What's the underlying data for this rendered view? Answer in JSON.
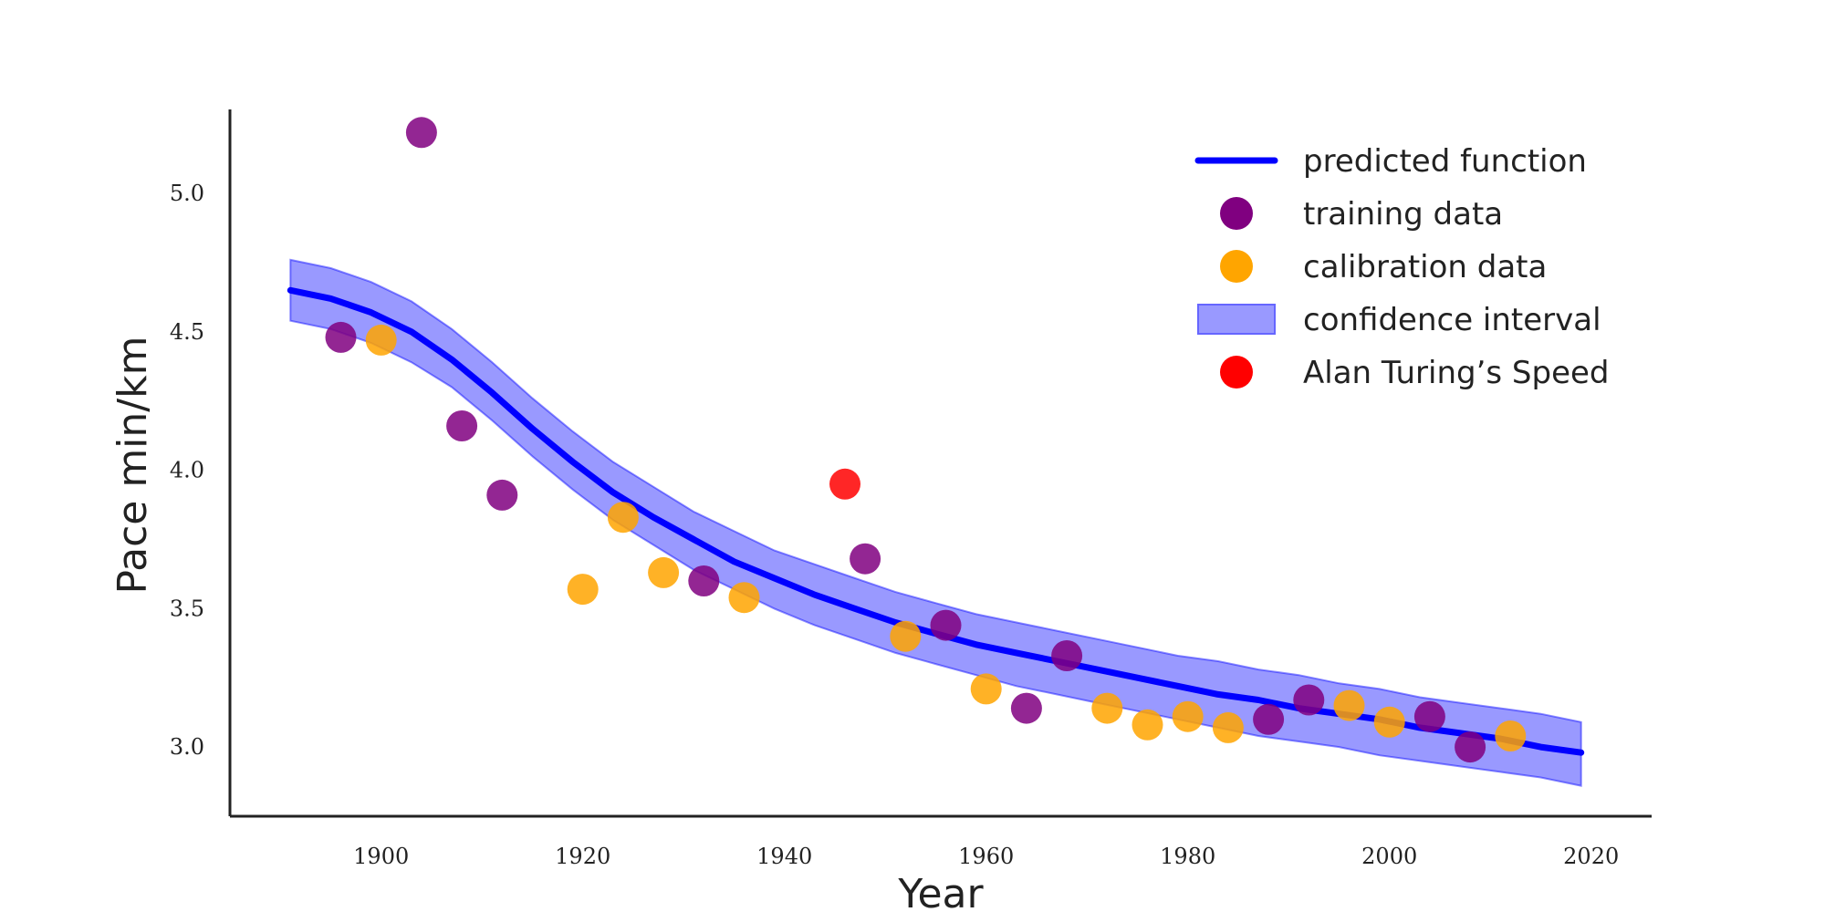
{
  "chart_data": {
    "type": "scatter",
    "xlabel": "Year",
    "ylabel": "Pace min/km",
    "xlim": [
      1885,
      2026
    ],
    "ylim": [
      2.75,
      5.3
    ],
    "xticks": [
      1900,
      1920,
      1940,
      1960,
      1980,
      2000,
      2020
    ],
    "yticks": [
      3.0,
      3.5,
      4.0,
      4.5,
      5.0
    ],
    "grid": false,
    "legend_position": "top-right",
    "legend": [
      {
        "label": "predicted function",
        "kind": "line",
        "color": "#0000ff"
      },
      {
        "label": "training data",
        "kind": "marker",
        "color": "#800080"
      },
      {
        "label": "calibration data",
        "kind": "marker",
        "color": "#ffa500"
      },
      {
        "label": "confidence interval",
        "kind": "patch",
        "color": "#9999ff"
      },
      {
        "label": "Alan Turing’s Speed",
        "kind": "marker",
        "color": "#ff0000"
      }
    ],
    "series": [
      {
        "name": "predicted function",
        "kind": "line",
        "color": "#0000ff",
        "x": [
          1891,
          1895,
          1899,
          1903,
          1907,
          1911,
          1915,
          1919,
          1923,
          1927,
          1931,
          1935,
          1939,
          1943,
          1947,
          1951,
          1955,
          1959,
          1963,
          1967,
          1971,
          1975,
          1979,
          1983,
          1987,
          1991,
          1995,
          1999,
          2003,
          2007,
          2011,
          2015,
          2019
        ],
        "y": [
          4.65,
          4.62,
          4.57,
          4.5,
          4.4,
          4.28,
          4.15,
          4.03,
          3.92,
          3.83,
          3.75,
          3.67,
          3.61,
          3.55,
          3.5,
          3.45,
          3.41,
          3.37,
          3.34,
          3.31,
          3.28,
          3.25,
          3.22,
          3.19,
          3.17,
          3.14,
          3.12,
          3.1,
          3.07,
          3.05,
          3.03,
          3.0,
          2.98
        ]
      },
      {
        "name": "confidence interval",
        "kind": "band",
        "color": "#0000ff",
        "x": [
          1891,
          1895,
          1899,
          1903,
          1907,
          1911,
          1915,
          1919,
          1923,
          1927,
          1931,
          1935,
          1939,
          1943,
          1947,
          1951,
          1955,
          1959,
          1963,
          1967,
          1971,
          1975,
          1979,
          1983,
          1987,
          1991,
          1995,
          1999,
          2003,
          2007,
          2011,
          2015,
          2019
        ],
        "lower": [
          4.54,
          4.51,
          4.46,
          4.39,
          4.3,
          4.18,
          4.05,
          3.93,
          3.82,
          3.73,
          3.64,
          3.57,
          3.5,
          3.44,
          3.39,
          3.34,
          3.3,
          3.26,
          3.22,
          3.19,
          3.16,
          3.13,
          3.1,
          3.07,
          3.04,
          3.02,
          3.0,
          2.97,
          2.95,
          2.93,
          2.91,
          2.89,
          2.86
        ],
        "upper": [
          4.76,
          4.73,
          4.68,
          4.61,
          4.51,
          4.39,
          4.26,
          4.14,
          4.03,
          3.94,
          3.85,
          3.78,
          3.71,
          3.66,
          3.61,
          3.56,
          3.52,
          3.48,
          3.45,
          3.42,
          3.39,
          3.36,
          3.33,
          3.31,
          3.28,
          3.26,
          3.23,
          3.21,
          3.18,
          3.16,
          3.14,
          3.12,
          3.09
        ]
      },
      {
        "name": "training data",
        "kind": "points",
        "color": "#800080",
        "x": [
          1896,
          1904,
          1908,
          1912,
          1932,
          1948,
          1956,
          1964,
          1968,
          1988,
          1992,
          2004,
          2008
        ],
        "y": [
          4.48,
          5.22,
          4.16,
          3.91,
          3.6,
          3.68,
          3.44,
          3.14,
          3.33,
          3.1,
          3.17,
          3.11,
          3.0
        ]
      },
      {
        "name": "calibration data",
        "kind": "points",
        "color": "#ffa500",
        "x": [
          1900,
          1920,
          1924,
          1928,
          1936,
          1952,
          1960,
          1972,
          1976,
          1980,
          1984,
          1996,
          2000,
          2012
        ],
        "y": [
          4.47,
          3.57,
          3.83,
          3.63,
          3.54,
          3.4,
          3.21,
          3.14,
          3.08,
          3.11,
          3.07,
          3.15,
          3.09,
          3.04
        ]
      },
      {
        "name": "Alan Turing’s Speed",
        "kind": "points",
        "color": "#ff0000",
        "x": [
          1946
        ],
        "y": [
          3.95
        ]
      }
    ]
  }
}
